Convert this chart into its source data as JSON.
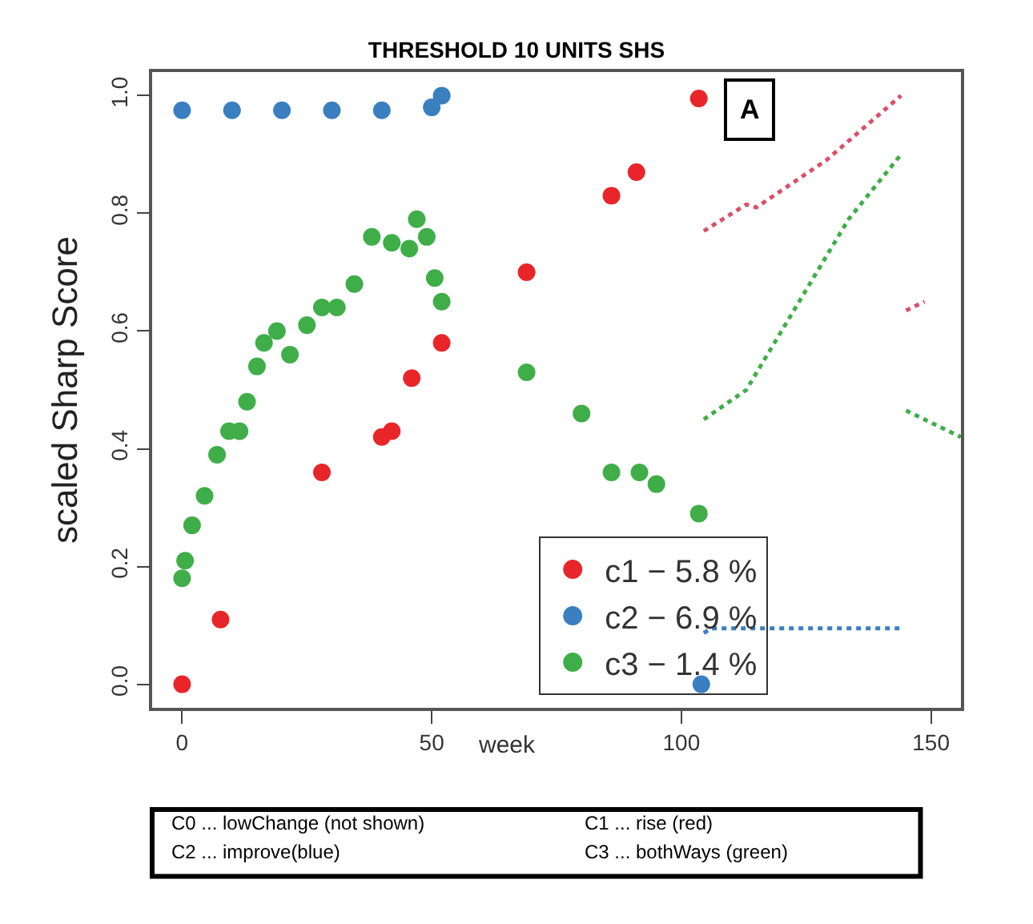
{
  "chart_data": {
    "type": "scatter",
    "title": "THRESHOLD 10 UNITS SHS",
    "xlabel": "week",
    "ylabel": "scaled Sharp Score",
    "xlim": [
      -6,
      156
    ],
    "ylim": [
      -0.04,
      1.04
    ],
    "xticks": [
      0,
      50,
      100,
      150
    ],
    "yticks": [
      {
        "value": 0,
        "label": "0.0"
      },
      0.2,
      0.4,
      0.6,
      0.8,
      {
        "value": 1,
        "label": "1.0"
      }
    ],
    "legend": "bottom",
    "marker": "circle",
    "series": [
      {
        "name": "c1 − 5.8 %",
        "color": "#e8262a",
        "x": [
          0,
          7.7,
          28,
          40,
          42,
          46,
          52,
          69,
          86,
          91,
          103.5
        ],
        "values": [
          0,
          0.11,
          0.36,
          0.42,
          0.43,
          0.52,
          0.58,
          0.7,
          0.83,
          0.87,
          0.995
        ]
      },
      {
        "name": "c2 − 6.9 %",
        "color": "#3a7fc0",
        "x": [
          0,
          10,
          20,
          30,
          40,
          50,
          52,
          104
        ],
        "values": [
          0.975,
          0.975,
          0.975,
          0.975,
          0.975,
          0.98,
          1.0,
          0.0
        ]
      },
      {
        "name": "c3 − 1.4 %",
        "color": "#3fae49",
        "x": [
          0,
          0.6,
          2,
          4.5,
          7,
          9.4,
          11.5,
          13,
          15,
          16.4,
          19,
          21.6,
          25,
          28,
          31,
          34.5,
          38,
          42,
          45.5,
          47,
          49,
          50.6,
          52,
          69,
          80,
          86,
          91.6,
          95,
          103.5
        ],
        "values": [
          0.18,
          0.21,
          0.27,
          0.32,
          0.39,
          0.43,
          0.43,
          0.48,
          0.54,
          0.58,
          0.6,
          0.56,
          0.61,
          0.64,
          0.64,
          0.68,
          0.76,
          0.75,
          0.74,
          0.79,
          0.76,
          0.69,
          0.65,
          0.53,
          0.46,
          0.36,
          0.36,
          0.34,
          0.29
        ]
      },
      {
        "type": "line",
        "marker": "none",
        "line_style": "dotted",
        "color": "#d9506a",
        "x": [
          104.5,
          113,
          115,
          129,
          144
        ],
        "values": [
          0.77,
          0.815,
          0.81,
          0.89,
          1.0
        ]
      },
      {
        "type": "line",
        "marker": "none",
        "line_style": "dotted",
        "color": "#d9506a",
        "x": [
          145,
          148.7
        ],
        "values": [
          0.635,
          0.65
        ]
      },
      {
        "type": "line",
        "marker": "none",
        "line_style": "dotted",
        "color": "#3fae49",
        "x": [
          104.5,
          113,
          125,
          133.5,
          144
        ],
        "values": [
          0.45,
          0.5,
          0.67,
          0.79,
          0.9
        ]
      },
      {
        "type": "line",
        "marker": "none",
        "line_style": "dotted",
        "color": "#3fae49",
        "x": [
          145,
          156
        ],
        "values": [
          0.465,
          0.42
        ]
      },
      {
        "type": "line",
        "marker": "none",
        "line_style": "dotted",
        "color": "#3a7fc0",
        "x": [
          104.5,
          106,
          144
        ],
        "values": [
          0.087,
          0.095,
          0.095
        ]
      }
    ],
    "annotations": [
      "A",
      "C0 ... lowChange (not shown)",
      "C1 ... rise (red)",
      "C2 ... improve(blue)",
      "C3 ... bothWays (green)"
    ]
  }
}
